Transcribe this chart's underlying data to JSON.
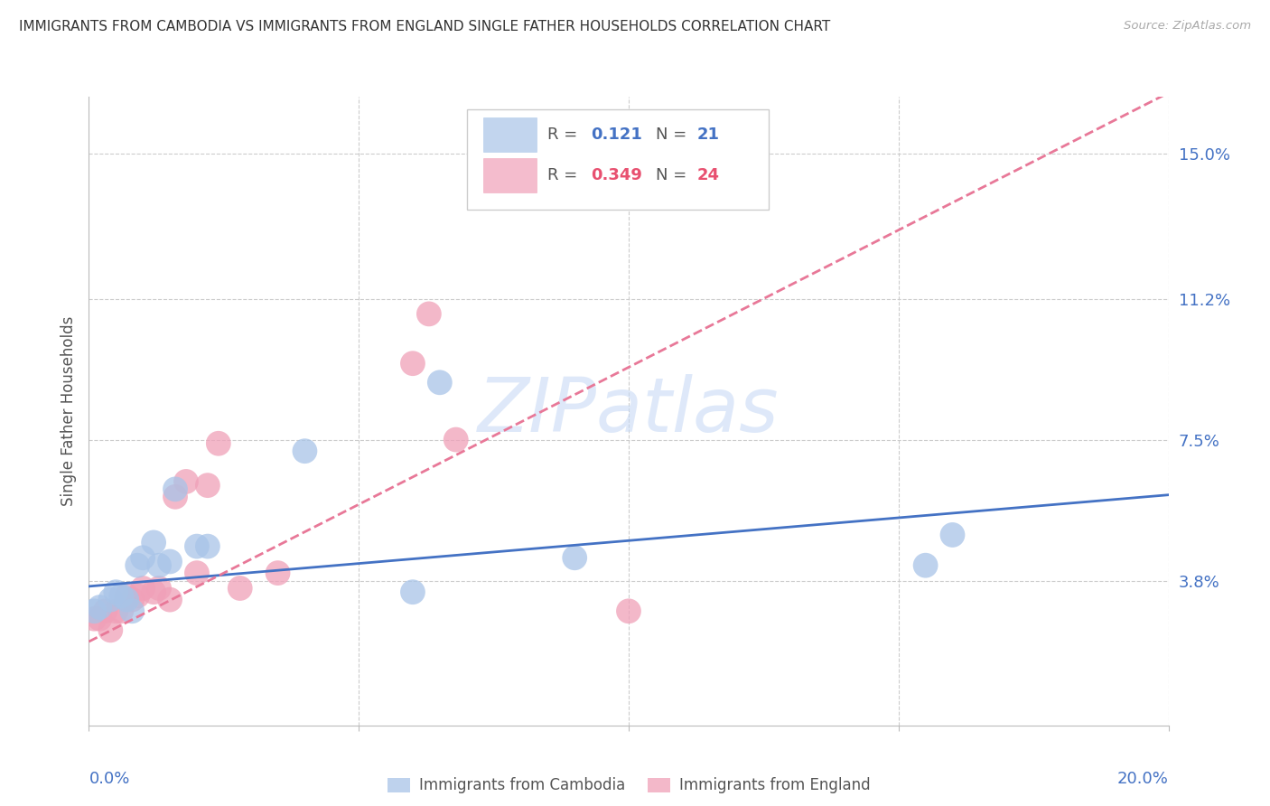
{
  "title": "IMMIGRANTS FROM CAMBODIA VS IMMIGRANTS FROM ENGLAND SINGLE FATHER HOUSEHOLDS CORRELATION CHART",
  "source": "Source: ZipAtlas.com",
  "ylabel": "Single Father Households",
  "ytick_values": [
    0.0,
    0.038,
    0.075,
    0.112,
    0.15
  ],
  "xmin": 0.0,
  "xmax": 0.2,
  "ymin": 0.0,
  "ymax": 0.165,
  "watermark": "ZIPatlas",
  "legend_entry1_R": "0.121",
  "legend_entry1_N": "21",
  "legend_entry2_R": "0.349",
  "legend_entry2_N": "24",
  "cambodia_color": "#a8c4e8",
  "england_color": "#f0a0b8",
  "cambodia_scatter_x": [
    0.001,
    0.002,
    0.004,
    0.005,
    0.006,
    0.007,
    0.008,
    0.009,
    0.01,
    0.012,
    0.013,
    0.015,
    0.016,
    0.02,
    0.022,
    0.04,
    0.06,
    0.065,
    0.09,
    0.155,
    0.16
  ],
  "cambodia_scatter_y": [
    0.03,
    0.031,
    0.033,
    0.035,
    0.034,
    0.033,
    0.03,
    0.042,
    0.044,
    0.048,
    0.042,
    0.043,
    0.062,
    0.047,
    0.047,
    0.072,
    0.035,
    0.09,
    0.044,
    0.042,
    0.05
  ],
  "england_scatter_x": [
    0.001,
    0.002,
    0.003,
    0.004,
    0.005,
    0.006,
    0.007,
    0.008,
    0.009,
    0.01,
    0.012,
    0.013,
    0.015,
    0.016,
    0.018,
    0.02,
    0.022,
    0.024,
    0.028,
    0.035,
    0.06,
    0.063,
    0.068,
    0.1
  ],
  "england_scatter_y": [
    0.028,
    0.028,
    0.03,
    0.025,
    0.03,
    0.03,
    0.034,
    0.033,
    0.034,
    0.036,
    0.035,
    0.036,
    0.033,
    0.06,
    0.064,
    0.04,
    0.063,
    0.074,
    0.036,
    0.04,
    0.095,
    0.108,
    0.075,
    0.03
  ],
  "grid_color": "#cccccc",
  "line_blue": "#4472c4",
  "line_pink_dashed": "#e87898",
  "background_color": "#ffffff",
  "regression_cambodia_slope": 0.12,
  "regression_cambodia_intercept": 0.0365,
  "regression_england_slope": 0.72,
  "regression_england_intercept": 0.022
}
